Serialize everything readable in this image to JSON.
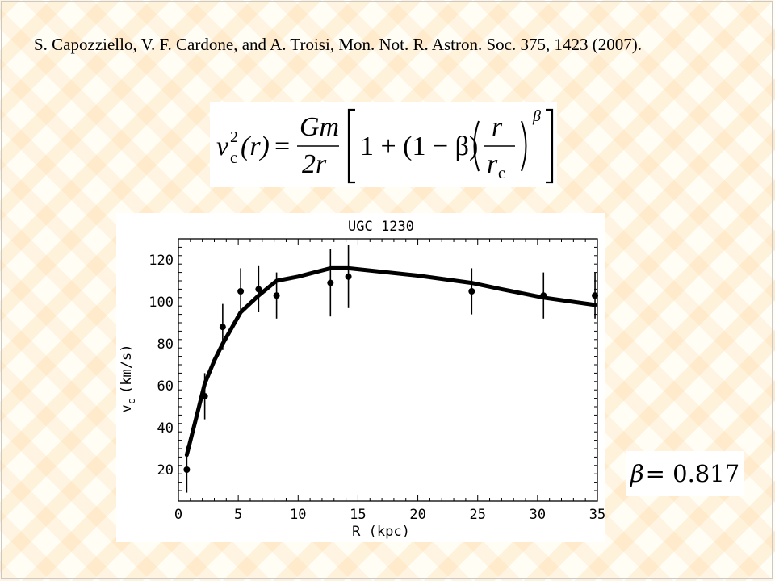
{
  "slide": {
    "reference": "S. Capozziello, V. F. Cardone, and A. Troisi, Mon. Not. R. Astron. Soc. 375, 1423 (2007).",
    "beta_symbol": "β",
    "beta_value": "= 0.817"
  },
  "equation": {
    "lhs_v": "v",
    "lhs_sup": "2",
    "lhs_sub": "c",
    "lhs_arg": "(r)",
    "equals": "=",
    "num": "Gm",
    "den": "2r",
    "one_plus": "1 + (1 − β)",
    "frac_num": "r",
    "frac_den": "r",
    "frac_den_sub": "c",
    "exponent": "β"
  },
  "chart_data": {
    "type": "scatter",
    "title": "UGC 1230",
    "xlabel": "R (kpc)",
    "ylabel": "v",
    "ylabel_sub": "c",
    "ylabel_unit": "(km/s)",
    "xlim": [
      0,
      35
    ],
    "ylim": [
      5,
      130
    ],
    "xticks": [
      0,
      5,
      10,
      15,
      20,
      25,
      30,
      35
    ],
    "yticks": [
      20,
      40,
      60,
      80,
      100,
      120
    ],
    "grid": false,
    "series": [
      {
        "kind": "points_with_errorbars",
        "x": [
          0.7,
          2.2,
          3.7,
          5.2,
          6.7,
          8.2,
          12.7,
          14.2,
          24.5,
          30.5,
          34.8
        ],
        "y": [
          20,
          55,
          88,
          105,
          106,
          103,
          109,
          112,
          105,
          103,
          103
        ],
        "err": [
          11,
          11,
          11,
          11,
          11,
          11,
          16,
          15,
          11,
          11,
          11
        ]
      },
      {
        "kind": "model_curve",
        "x": [
          0.7,
          1.5,
          2.2,
          3,
          3.7,
          5.2,
          6.7,
          8.2,
          10,
          12.7,
          14.2,
          20,
          24.5,
          27,
          30.5,
          34.8
        ],
        "y": [
          27,
          45,
          61,
          72,
          80,
          95,
          103,
          110,
          112,
          116,
          116,
          112.5,
          109,
          106,
          102,
          98.5
        ]
      }
    ]
  }
}
